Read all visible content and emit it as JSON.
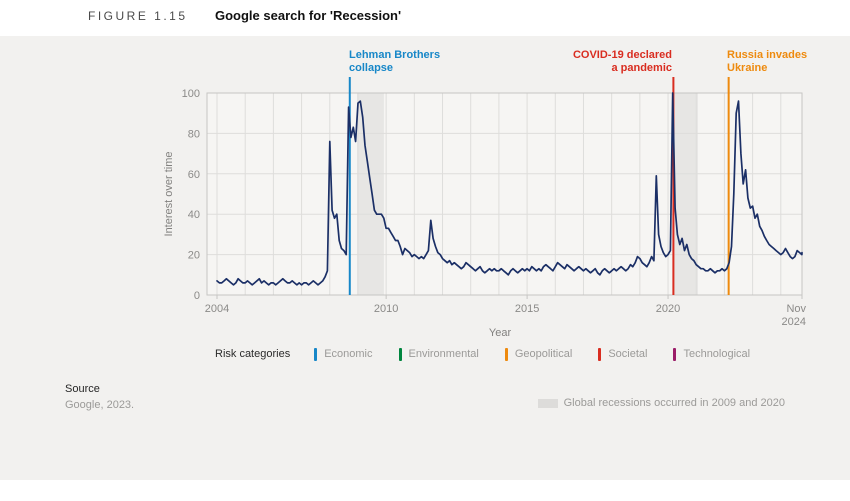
{
  "header": {
    "figure_label": "FIGURE 1.15",
    "title": "Google search for 'Recession'"
  },
  "annotations": [
    {
      "id": "lehman",
      "line1": "Lehman Brothers",
      "line2": "collapse",
      "category": "Economic",
      "color": "#1787c8",
      "t": 2008.71
    },
    {
      "id": "covid",
      "line1": "COVID-19 declared",
      "line2": "a pandemic",
      "category": "Societal",
      "color": "#d92d20",
      "t": 2020.19
    },
    {
      "id": "russia",
      "line1": "Russia invades",
      "line2": "Ukraine",
      "category": "Geopolitical",
      "color": "#ee8a0e",
      "t": 2022.15
    }
  ],
  "chart_data": {
    "type": "line",
    "title": "Google search for 'Recession'",
    "xlabel": "Year",
    "ylabel": "Interest over time",
    "xlim": [
      2003.645,
      2024.752
    ],
    "ylim": [
      0,
      100
    ],
    "yticks": [
      0,
      20,
      40,
      60,
      80,
      100
    ],
    "xticks": [
      {
        "t": 2004,
        "lines": [
          "2004"
        ],
        "anchor": "middle"
      },
      {
        "t": 2010,
        "lines": [
          "2010"
        ],
        "anchor": "middle"
      },
      {
        "t": 2015,
        "lines": [
          "2015"
        ],
        "anchor": "middle"
      },
      {
        "t": 2020,
        "lines": [
          "2020"
        ],
        "anchor": "middle"
      },
      {
        "t": 2024.87,
        "lines": [
          "Nov",
          "2024"
        ],
        "anchor": "end"
      }
    ],
    "grid": true,
    "series": [
      {
        "name": "Interest over time",
        "color": "#1b2f66",
        "start_year": 2004,
        "start_month": "Jan",
        "end_label": "Nov 2024",
        "frequency": "monthly",
        "values": [
          7,
          6,
          6,
          7,
          8,
          7,
          6,
          5,
          6,
          8,
          7,
          6,
          6,
          7,
          6,
          5,
          6,
          7,
          8,
          6,
          7,
          6,
          5,
          6,
          6,
          5,
          6,
          7,
          8,
          7,
          6,
          6,
          7,
          6,
          5,
          6,
          5,
          6,
          6,
          5,
          6,
          7,
          6,
          5,
          6,
          7,
          9,
          12,
          76,
          42,
          38,
          40,
          27,
          23,
          22,
          20,
          93,
          78,
          83,
          76,
          95,
          96,
          88,
          74,
          66,
          58,
          50,
          42,
          40,
          40,
          40,
          38,
          33,
          33,
          31,
          29,
          27,
          27,
          24,
          20,
          23,
          22,
          21,
          19,
          20,
          19,
          18,
          19,
          18,
          20,
          22,
          37,
          28,
          24,
          21,
          20,
          18,
          17,
          16,
          17,
          15,
          16,
          15,
          14,
          13,
          14,
          16,
          15,
          14,
          13,
          12,
          13,
          14,
          12,
          11,
          12,
          13,
          12,
          13,
          12,
          12,
          13,
          12,
          11,
          10,
          12,
          13,
          12,
          11,
          12,
          13,
          12,
          13,
          12,
          14,
          13,
          12,
          13,
          12,
          14,
          15,
          14,
          13,
          12,
          14,
          16,
          15,
          14,
          13,
          15,
          14,
          13,
          12,
          13,
          14,
          13,
          12,
          13,
          12,
          11,
          12,
          13,
          11,
          10,
          12,
          13,
          12,
          11,
          12,
          13,
          12,
          13,
          14,
          13,
          12,
          13,
          15,
          14,
          16,
          19,
          18,
          16,
          15,
          14,
          16,
          19,
          17,
          59,
          30,
          24,
          21,
          19,
          20,
          22,
          100,
          43,
          30,
          25,
          28,
          22,
          25,
          20,
          18,
          17,
          15,
          14,
          13,
          13,
          12,
          12,
          13,
          12,
          11,
          12,
          12,
          13,
          12,
          13,
          16,
          24,
          50,
          90,
          96,
          70,
          55,
          62,
          48,
          43,
          44,
          38,
          40,
          34,
          32,
          29,
          27,
          25,
          24,
          23,
          22,
          21,
          20,
          21,
          23,
          21,
          19,
          18,
          19,
          22,
          21,
          20,
          21
        ]
      }
    ],
    "recession_bands": [
      {
        "from": 2008.97,
        "to": 2009.92,
        "label": "2009 global recession"
      },
      {
        "from": 2020.21,
        "to": 2021.06,
        "label": "2020 global recession"
      }
    ],
    "colors": {
      "band": "#e7e6e4",
      "grid": "#dedddb",
      "plot_border": "#c6c5c3",
      "plot_bg": "#f6f5f3",
      "tick_text": "#8b8a88"
    }
  },
  "legend": {
    "title": "Risk categories",
    "items": [
      {
        "label": "Economic",
        "color": "#1787c8"
      },
      {
        "label": "Environmental",
        "color": "#00853e"
      },
      {
        "label": "Geopolitical",
        "color": "#ee8a0e"
      },
      {
        "label": "Societal",
        "color": "#d92d20"
      },
      {
        "label": "Technological",
        "color": "#9b1d68"
      }
    ]
  },
  "footer": {
    "source_label": "Source",
    "source_value": "Google, 2023.",
    "note": "Global recessions occurred in 2009 and 2020"
  }
}
